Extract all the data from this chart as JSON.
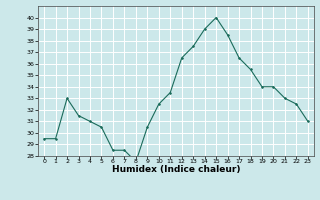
{
  "x": [
    0,
    1,
    2,
    3,
    4,
    5,
    6,
    7,
    8,
    9,
    10,
    11,
    12,
    13,
    14,
    15,
    16,
    17,
    18,
    19,
    20,
    21,
    22,
    23
  ],
  "y": [
    29.5,
    29.5,
    33,
    31.5,
    31,
    30.5,
    28.5,
    28.5,
    27.5,
    30.5,
    32.5,
    33.5,
    36.5,
    37.5,
    39,
    40,
    38.5,
    36.5,
    35.5,
    34,
    34,
    33,
    32.5,
    31
  ],
  "xlabel": "Humidex (Indice chaleur)",
  "ylim": [
    28,
    41
  ],
  "xlim": [
    -0.5,
    23.5
  ],
  "line_color": "#1a6b5a",
  "marker_color": "#1a6b5a",
  "bg_color": "#cce8ea",
  "grid_color": "#ffffff",
  "yticks": [
    28,
    29,
    30,
    31,
    32,
    33,
    34,
    35,
    36,
    37,
    38,
    39,
    40
  ],
  "xticks": [
    0,
    1,
    2,
    3,
    4,
    5,
    6,
    7,
    8,
    9,
    10,
    11,
    12,
    13,
    14,
    15,
    16,
    17,
    18,
    19,
    20,
    21,
    22,
    23
  ]
}
